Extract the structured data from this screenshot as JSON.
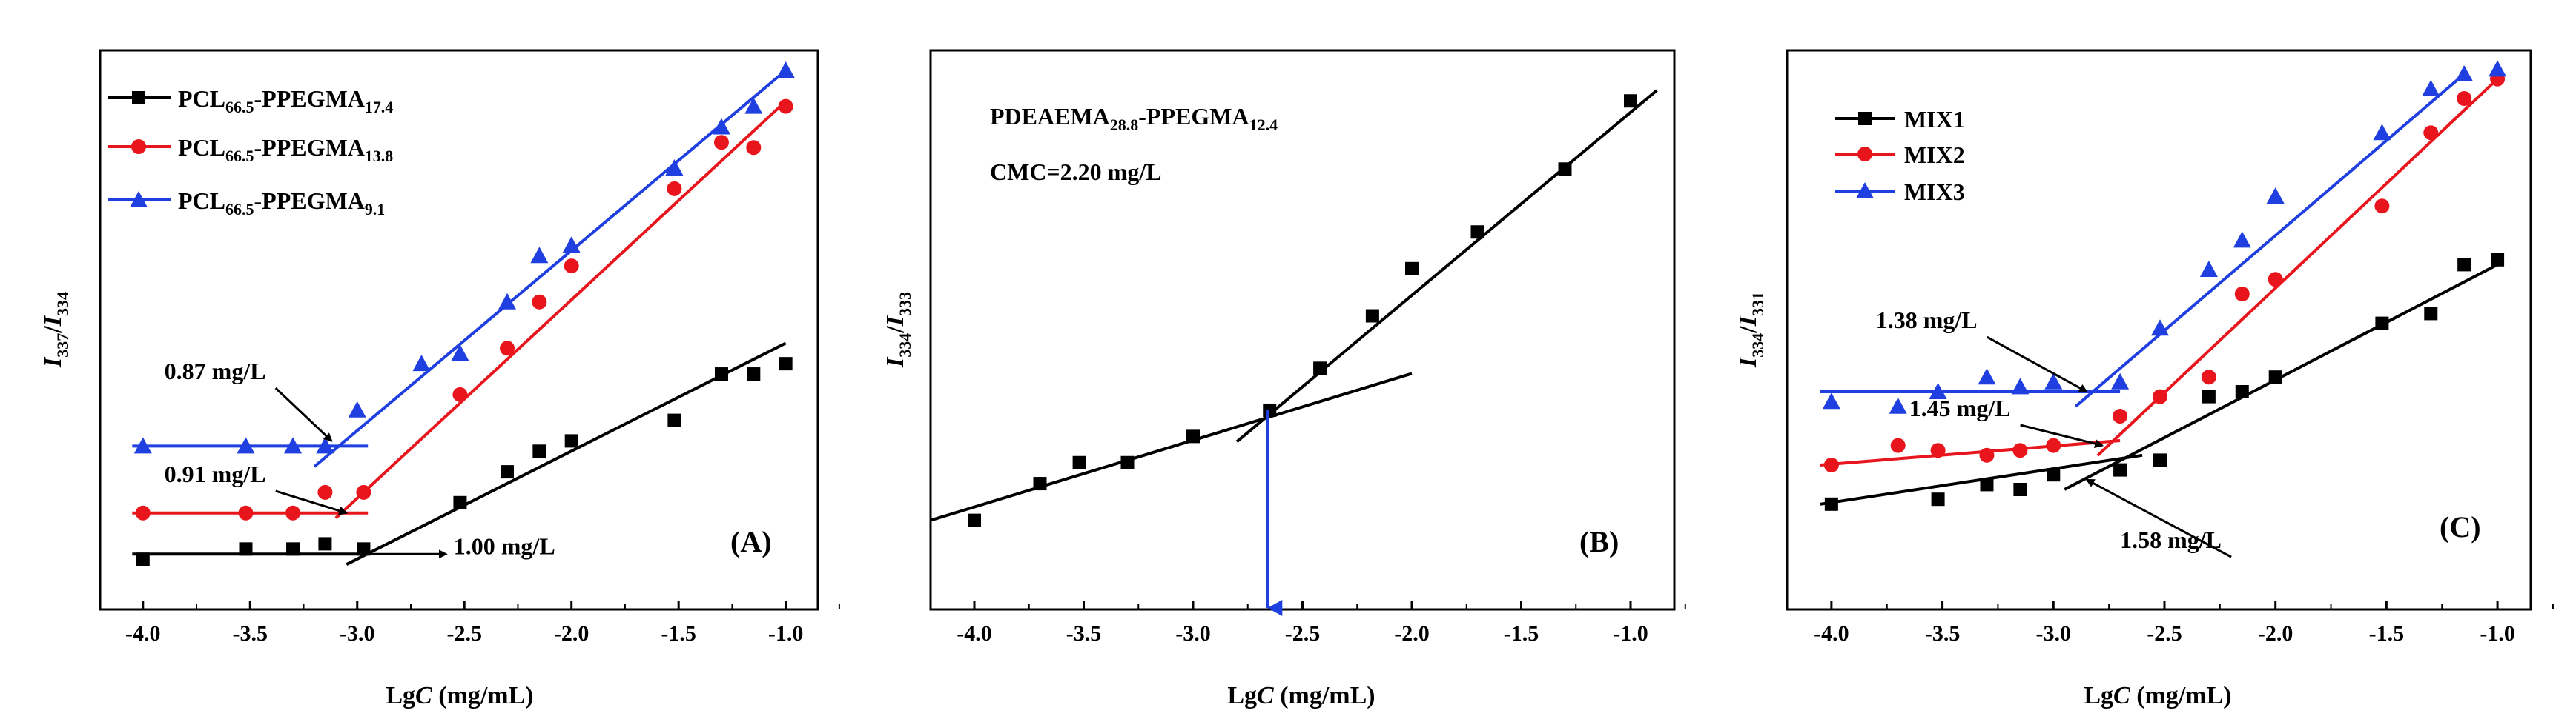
{
  "chart_data": [
    {
      "type": "scatter",
      "panel_label": "(A)",
      "xlabel": "LgC (mg/mL)",
      "ylabel": "I337/I334",
      "xlabel_parts": {
        "main": "Lg",
        "italic": "C",
        "rest": " (mg/mL)"
      },
      "ylabel_parts": {
        "a": "I",
        "a_sub": "337",
        "sep": "/",
        "b": "I",
        "b_sub": "334"
      },
      "xlim": [
        -4.2,
        -0.85
      ],
      "ylim": [
        0.0,
        1.0
      ],
      "xticks": [
        -4.0,
        -3.5,
        -3.0,
        -2.5,
        -2.0,
        -1.5,
        -1.0
      ],
      "xtick_labels": [
        "-4.0",
        "-3.5",
        "-3.0",
        "-2.5",
        "-2.0",
        "-1.5",
        "-1.0"
      ],
      "legend_position": "top-left",
      "series": [
        {
          "name": "PCL66.5-PPEGMA17.4",
          "name_parts": {
            "a": "PCL",
            "a_sub": "66.5",
            "b": "-PPEGMA",
            "b_sub": "17.4"
          },
          "color": "#000000",
          "marker": "square",
          "x": [
            -4.0,
            -3.52,
            -3.3,
            -3.15,
            -2.97,
            -2.52,
            -2.3,
            -2.15,
            -2.0,
            -1.52,
            -1.3,
            -1.15,
            -1.0
          ],
          "y": [
            0.05,
            0.07,
            0.07,
            0.08,
            0.07,
            0.16,
            0.22,
            0.26,
            0.28,
            0.32,
            0.41,
            0.41,
            0.43
          ],
          "fits": [
            {
              "x": [
                -4.05,
                -2.95
              ],
              "y": [
                0.06,
                0.06
              ]
            },
            {
              "x": [
                -3.05,
                -1.0
              ],
              "y": [
                0.04,
                0.47
              ]
            }
          ]
        },
        {
          "name": "PCL66.5-PPEGMA13.8",
          "name_parts": {
            "a": "PCL",
            "a_sub": "66.5",
            "b": "-PPEGMA",
            "b_sub": "13.8"
          },
          "color": "#e8161c",
          "marker": "circle",
          "x": [
            -4.0,
            -3.52,
            -3.3,
            -3.15,
            -2.97,
            -2.52,
            -2.3,
            -2.15,
            -2.0,
            -1.52,
            -1.3,
            -1.15,
            -1.0
          ],
          "y": [
            0.14,
            0.14,
            0.14,
            0.18,
            0.18,
            0.37,
            0.46,
            0.55,
            0.62,
            0.77,
            0.86,
            0.85,
            0.93
          ],
          "fits": [
            {
              "x": [
                -4.05,
                -2.95
              ],
              "y": [
                0.14,
                0.14
              ]
            },
            {
              "x": [
                -3.1,
                -1.0
              ],
              "y": [
                0.13,
                0.94
              ]
            }
          ]
        },
        {
          "name": "PCL66.5-PPEGMA9.1",
          "name_parts": {
            "a": "PCL",
            "a_sub": "66.5",
            "b": "-PPEGMA",
            "b_sub": "9.1"
          },
          "color": "#1f3fe0",
          "marker": "triangle",
          "x": [
            -4.0,
            -3.52,
            -3.3,
            -3.15,
            -3.0,
            -2.7,
            -2.52,
            -2.3,
            -2.15,
            -2.0,
            -1.52,
            -1.3,
            -1.15,
            -1.0
          ],
          "y": [
            0.27,
            0.27,
            0.27,
            0.27,
            0.34,
            0.43,
            0.45,
            0.55,
            0.64,
            0.66,
            0.81,
            0.89,
            0.93,
            1.0
          ],
          "fits": [
            {
              "x": [
                -4.05,
                -2.95
              ],
              "y": [
                0.27,
                0.27
              ]
            },
            {
              "x": [
                -3.2,
                -1.0
              ],
              "y": [
                0.23,
                1.0
              ]
            }
          ]
        }
      ],
      "annotations": [
        {
          "text": "0.87 mg/L",
          "at": [
            -3.9,
            0.4
          ],
          "arrow_to": [
            -3.12,
            0.28
          ]
        },
        {
          "text": "0.91 mg/L",
          "at": [
            -3.9,
            0.2
          ],
          "arrow_to": [
            -3.05,
            0.14
          ]
        },
        {
          "text": "1.00 mg/L",
          "at": [
            -2.55,
            0.06
          ],
          "arrow_from": [
            -2.95,
            0.06
          ]
        }
      ]
    },
    {
      "type": "scatter",
      "panel_label": "(B)",
      "xlabel": "LgC (mg/mL)",
      "ylabel": "I334/I333",
      "xlabel_parts": {
        "main": "Lg",
        "italic": "C",
        "rest": " (mg/mL)"
      },
      "ylabel_parts": {
        "a": "I",
        "a_sub": "334",
        "sep": "/",
        "b": "I",
        "b_sub": "333"
      },
      "xlim": [
        -4.2,
        -0.8
      ],
      "ylim": [
        0.0,
        1.0
      ],
      "xticks": [
        -4.0,
        -3.5,
        -3.0,
        -2.5,
        -2.0,
        -1.5,
        -1.0
      ],
      "xtick_labels": [
        "-4.0",
        "-3.5",
        "-3.0",
        "-2.5",
        "-2.0",
        "-1.5",
        "-1.0"
      ],
      "title_lines": [
        {
          "parts": {
            "a": "PDEAEMA",
            "a_sub": "28.8",
            "b": "-PPEGMA",
            "b_sub": "12.4"
          }
        },
        {
          "text": "CMC=2.20 mg/L"
        }
      ],
      "series": [
        {
          "name": "PDEAEMA28.8-PPEGMA12.4",
          "color": "#000000",
          "marker": "square",
          "x": [
            -4.0,
            -3.7,
            -3.52,
            -3.3,
            -3.0,
            -2.65,
            -2.42,
            -2.18,
            -2.0,
            -1.7,
            -1.3,
            -1.0
          ],
          "y": [
            0.17,
            0.24,
            0.28,
            0.28,
            0.33,
            0.38,
            0.46,
            0.56,
            0.65,
            0.72,
            0.84,
            0.97
          ],
          "fits": [
            {
              "x": [
                -4.2,
                -2.0
              ],
              "y": [
                0.17,
                0.45
              ]
            },
            {
              "x": [
                -2.8,
                -0.88
              ],
              "y": [
                0.32,
                0.99
              ]
            }
          ]
        }
      ],
      "cmc_arrow": {
        "x": -2.66,
        "y_from": 0.38,
        "y_to": 0.0,
        "color": "#1f3fe0"
      }
    },
    {
      "type": "scatter",
      "panel_label": "(C)",
      "xlabel": "LgC (mg/mL)",
      "ylabel": "I334/I331",
      "xlabel_parts": {
        "main": "Lg",
        "italic": "C",
        "rest": " (mg/mL)"
      },
      "ylabel_parts": {
        "a": "I",
        "a_sub": "334",
        "sep": "/",
        "b": "I",
        "b_sub": "331"
      },
      "xlim": [
        -4.2,
        -0.85
      ],
      "ylim": [
        0.0,
        1.0
      ],
      "xticks": [
        -4.0,
        -3.5,
        -3.0,
        -2.5,
        -2.0,
        -1.5,
        -1.0
      ],
      "xtick_labels": [
        "-4.0",
        "-3.5",
        "-3.0",
        "-2.5",
        "-2.0",
        "-1.5",
        "-1.0"
      ],
      "legend_position": "top-left",
      "series": [
        {
          "name": "MIX1",
          "color": "#000000",
          "marker": "square",
          "x": [
            -4.0,
            -3.52,
            -3.3,
            -3.15,
            -3.0,
            -2.7,
            -2.52,
            -2.3,
            -2.15,
            -2.0,
            -1.52,
            -1.3,
            -1.15,
            -1.0
          ],
          "y": [
            0.12,
            0.13,
            0.16,
            0.15,
            0.18,
            0.19,
            0.21,
            0.34,
            0.35,
            0.38,
            0.49,
            0.51,
            0.61,
            0.62
          ],
          "fits": [
            {
              "x": [
                -4.05,
                -2.6
              ],
              "y": [
                0.12,
                0.22
              ]
            },
            {
              "x": [
                -2.95,
                -1.0
              ],
              "y": [
                0.15,
                0.61
              ]
            }
          ]
        },
        {
          "name": "MIX2",
          "color": "#e8161c",
          "marker": "circle",
          "x": [
            -4.0,
            -3.7,
            -3.52,
            -3.3,
            -3.15,
            -3.0,
            -2.7,
            -2.52,
            -2.3,
            -2.15,
            -2.0,
            -1.52,
            -1.3,
            -1.15,
            -1.0
          ],
          "y": [
            0.2,
            0.24,
            0.23,
            0.22,
            0.23,
            0.24,
            0.3,
            0.34,
            0.38,
            0.55,
            0.58,
            0.73,
            0.88,
            0.95,
            0.99
          ],
          "fits": [
            {
              "x": [
                -4.05,
                -2.7
              ],
              "y": [
                0.2,
                0.25
              ]
            },
            {
              "x": [
                -2.8,
                -1.0
              ],
              "y": [
                0.22,
                0.99
              ]
            }
          ]
        },
        {
          "name": "MIX3",
          "color": "#1f3fe0",
          "marker": "triangle",
          "x": [
            -4.0,
            -3.7,
            -3.52,
            -3.3,
            -3.15,
            -3.0,
            -2.7,
            -2.52,
            -2.3,
            -2.15,
            -2.0,
            -1.52,
            -1.3,
            -1.15,
            -1.0
          ],
          "y": [
            0.33,
            0.32,
            0.35,
            0.38,
            0.36,
            0.37,
            0.37,
            0.48,
            0.6,
            0.66,
            0.75,
            0.88,
            0.97,
            1.0,
            1.01
          ],
          "fits": [
            {
              "x": [
                -4.05,
                -2.7
              ],
              "y": [
                0.35,
                0.35
              ]
            },
            {
              "x": [
                -2.9,
                -1.15
              ],
              "y": [
                0.32,
                1.0
              ]
            }
          ]
        }
      ],
      "annotations": [
        {
          "text": "1.38 mg/L",
          "at": [
            -3.8,
            0.48
          ],
          "arrow_to": [
            -2.85,
            0.35
          ]
        },
        {
          "text": "1.45 mg/L",
          "at": [
            -3.65,
            0.3
          ],
          "arrow_to": [
            -2.78,
            0.24
          ]
        },
        {
          "text": "1.58 mg/L",
          "at": [
            -2.7,
            0.03
          ],
          "arrow_to": [
            -2.85,
            0.17
          ]
        }
      ]
    }
  ]
}
